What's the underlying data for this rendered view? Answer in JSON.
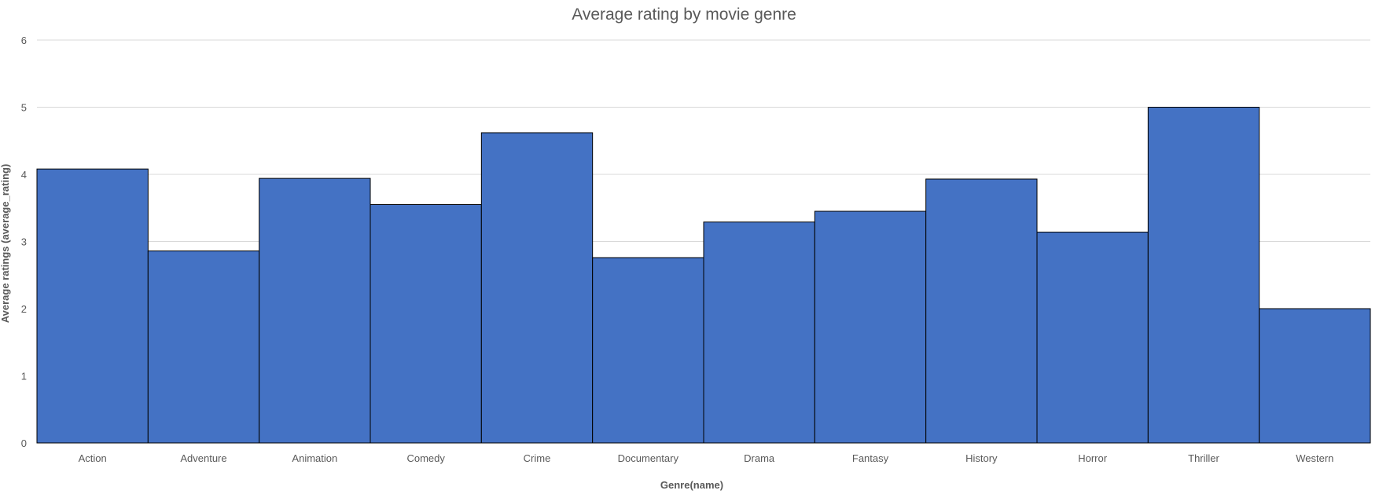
{
  "chart_data": {
    "type": "bar",
    "title": "Average rating by movie genre",
    "xlabel": "Genre(name)",
    "ylabel": "Average ratings (average_rating)",
    "categories": [
      "Action",
      "Adventure",
      "Animation",
      "Comedy",
      "Crime",
      "Documentary",
      "Drama",
      "Fantasy",
      "History",
      "Horror",
      "Thriller",
      "Western"
    ],
    "values": [
      4.08,
      2.86,
      3.94,
      3.55,
      4.62,
      2.76,
      3.29,
      3.45,
      3.93,
      3.14,
      5.0,
      2.0
    ],
    "ylim": [
      0,
      6
    ],
    "yticks": [
      "0",
      "1",
      "2",
      "3",
      "4",
      "5",
      "6"
    ],
    "grid": true,
    "bar_color": "#4472C4",
    "bar_border_color": "#000000",
    "legend": "none"
  }
}
